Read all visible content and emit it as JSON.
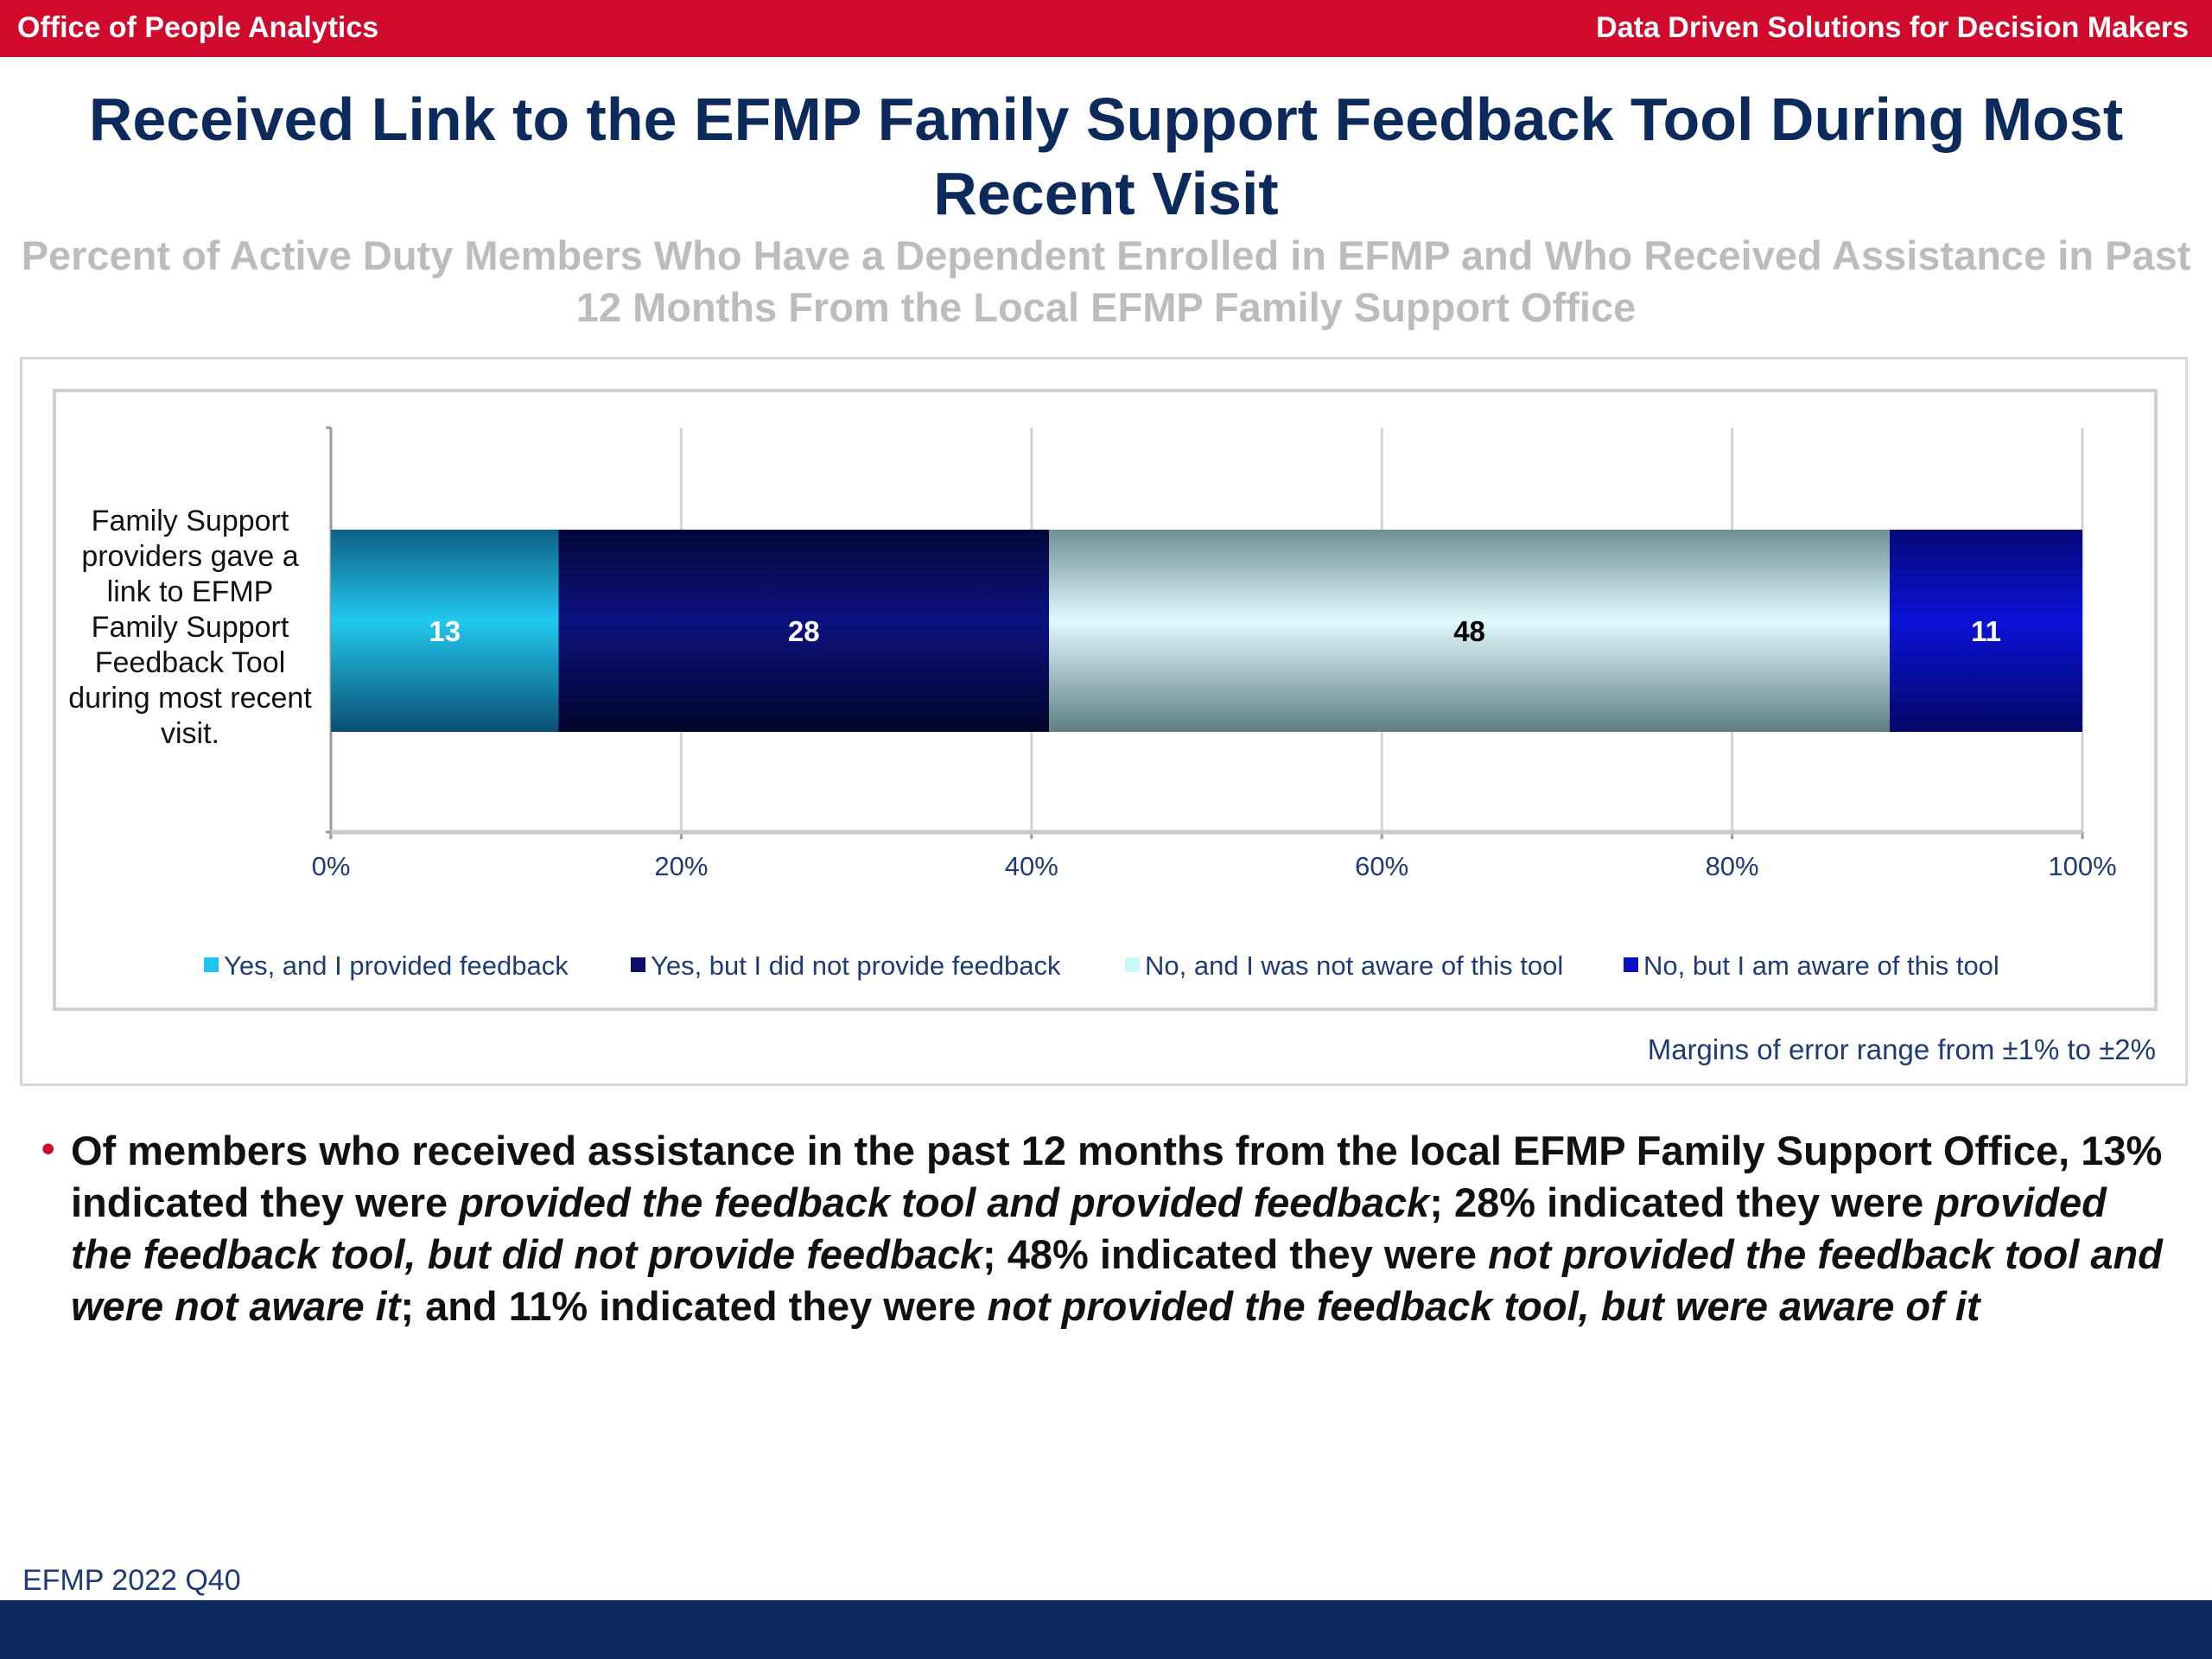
{
  "header": {
    "left": "Office of People Analytics",
    "right": "Data Driven Solutions for Decision Makers"
  },
  "title": "Received Link to the EFMP Family Support Feedback Tool During Most Recent Visit",
  "subtitle": "Percent of Active Duty Members Who Have a Dependent Enrolled in EFMP and Who Received Assistance in Past 12 Months From the Local EFMP Family Support Office",
  "chart_data": {
    "type": "bar",
    "orientation": "horizontal",
    "stacked": true,
    "categories": [
      "Family Support providers gave a link to EFMP Family Support Feedback Tool during most recent visit."
    ],
    "series": [
      {
        "name": "Yes, and I provided feedback",
        "values": [
          13
        ],
        "color": "#1cc3ea",
        "label_color": "#ffffff"
      },
      {
        "name": "Yes, but I did not provide feedback",
        "values": [
          28
        ],
        "color": "#0a0f6e",
        "label_color": "#ffffff"
      },
      {
        "name": "No, and I was not aware of this tool",
        "values": [
          48
        ],
        "color": "#cdf6f8",
        "label_color": "#000000"
      },
      {
        "name": "No, but I am aware of this tool",
        "values": [
          11
        ],
        "color": "#0a10c8",
        "label_color": "#ffffff"
      }
    ],
    "xlim": [
      0,
      100
    ],
    "x_ticks": [
      "0%",
      "20%",
      "40%",
      "60%",
      "80%",
      "100%"
    ],
    "x_tick_values": [
      0,
      20,
      40,
      60,
      80,
      100
    ],
    "grid": true,
    "legend_position": "bottom"
  },
  "margin_note": "Margins of error range from ±1% to ±2%",
  "bullet": {
    "p1": "Of members who received assistance in the past 12 months from the local EFMP Family Support Office, 13% indicated they were ",
    "i1": "provided the feedback tool and provided feedback",
    "p2": "; 28% indicated they were ",
    "i2": "provided the feedback tool, but did not provide feedback",
    "p3": "; 48% indicated they were ",
    "i3": "not provided the feedback tool and were not aware it",
    "p4": "; and 11% indicated they were ",
    "i4": "not provided the feedback tool, but were aware of it"
  },
  "source": "EFMP 2022 Q40",
  "colors": {
    "brand_red": "#cf0a2c",
    "brand_navy": "#0c2a5b"
  }
}
